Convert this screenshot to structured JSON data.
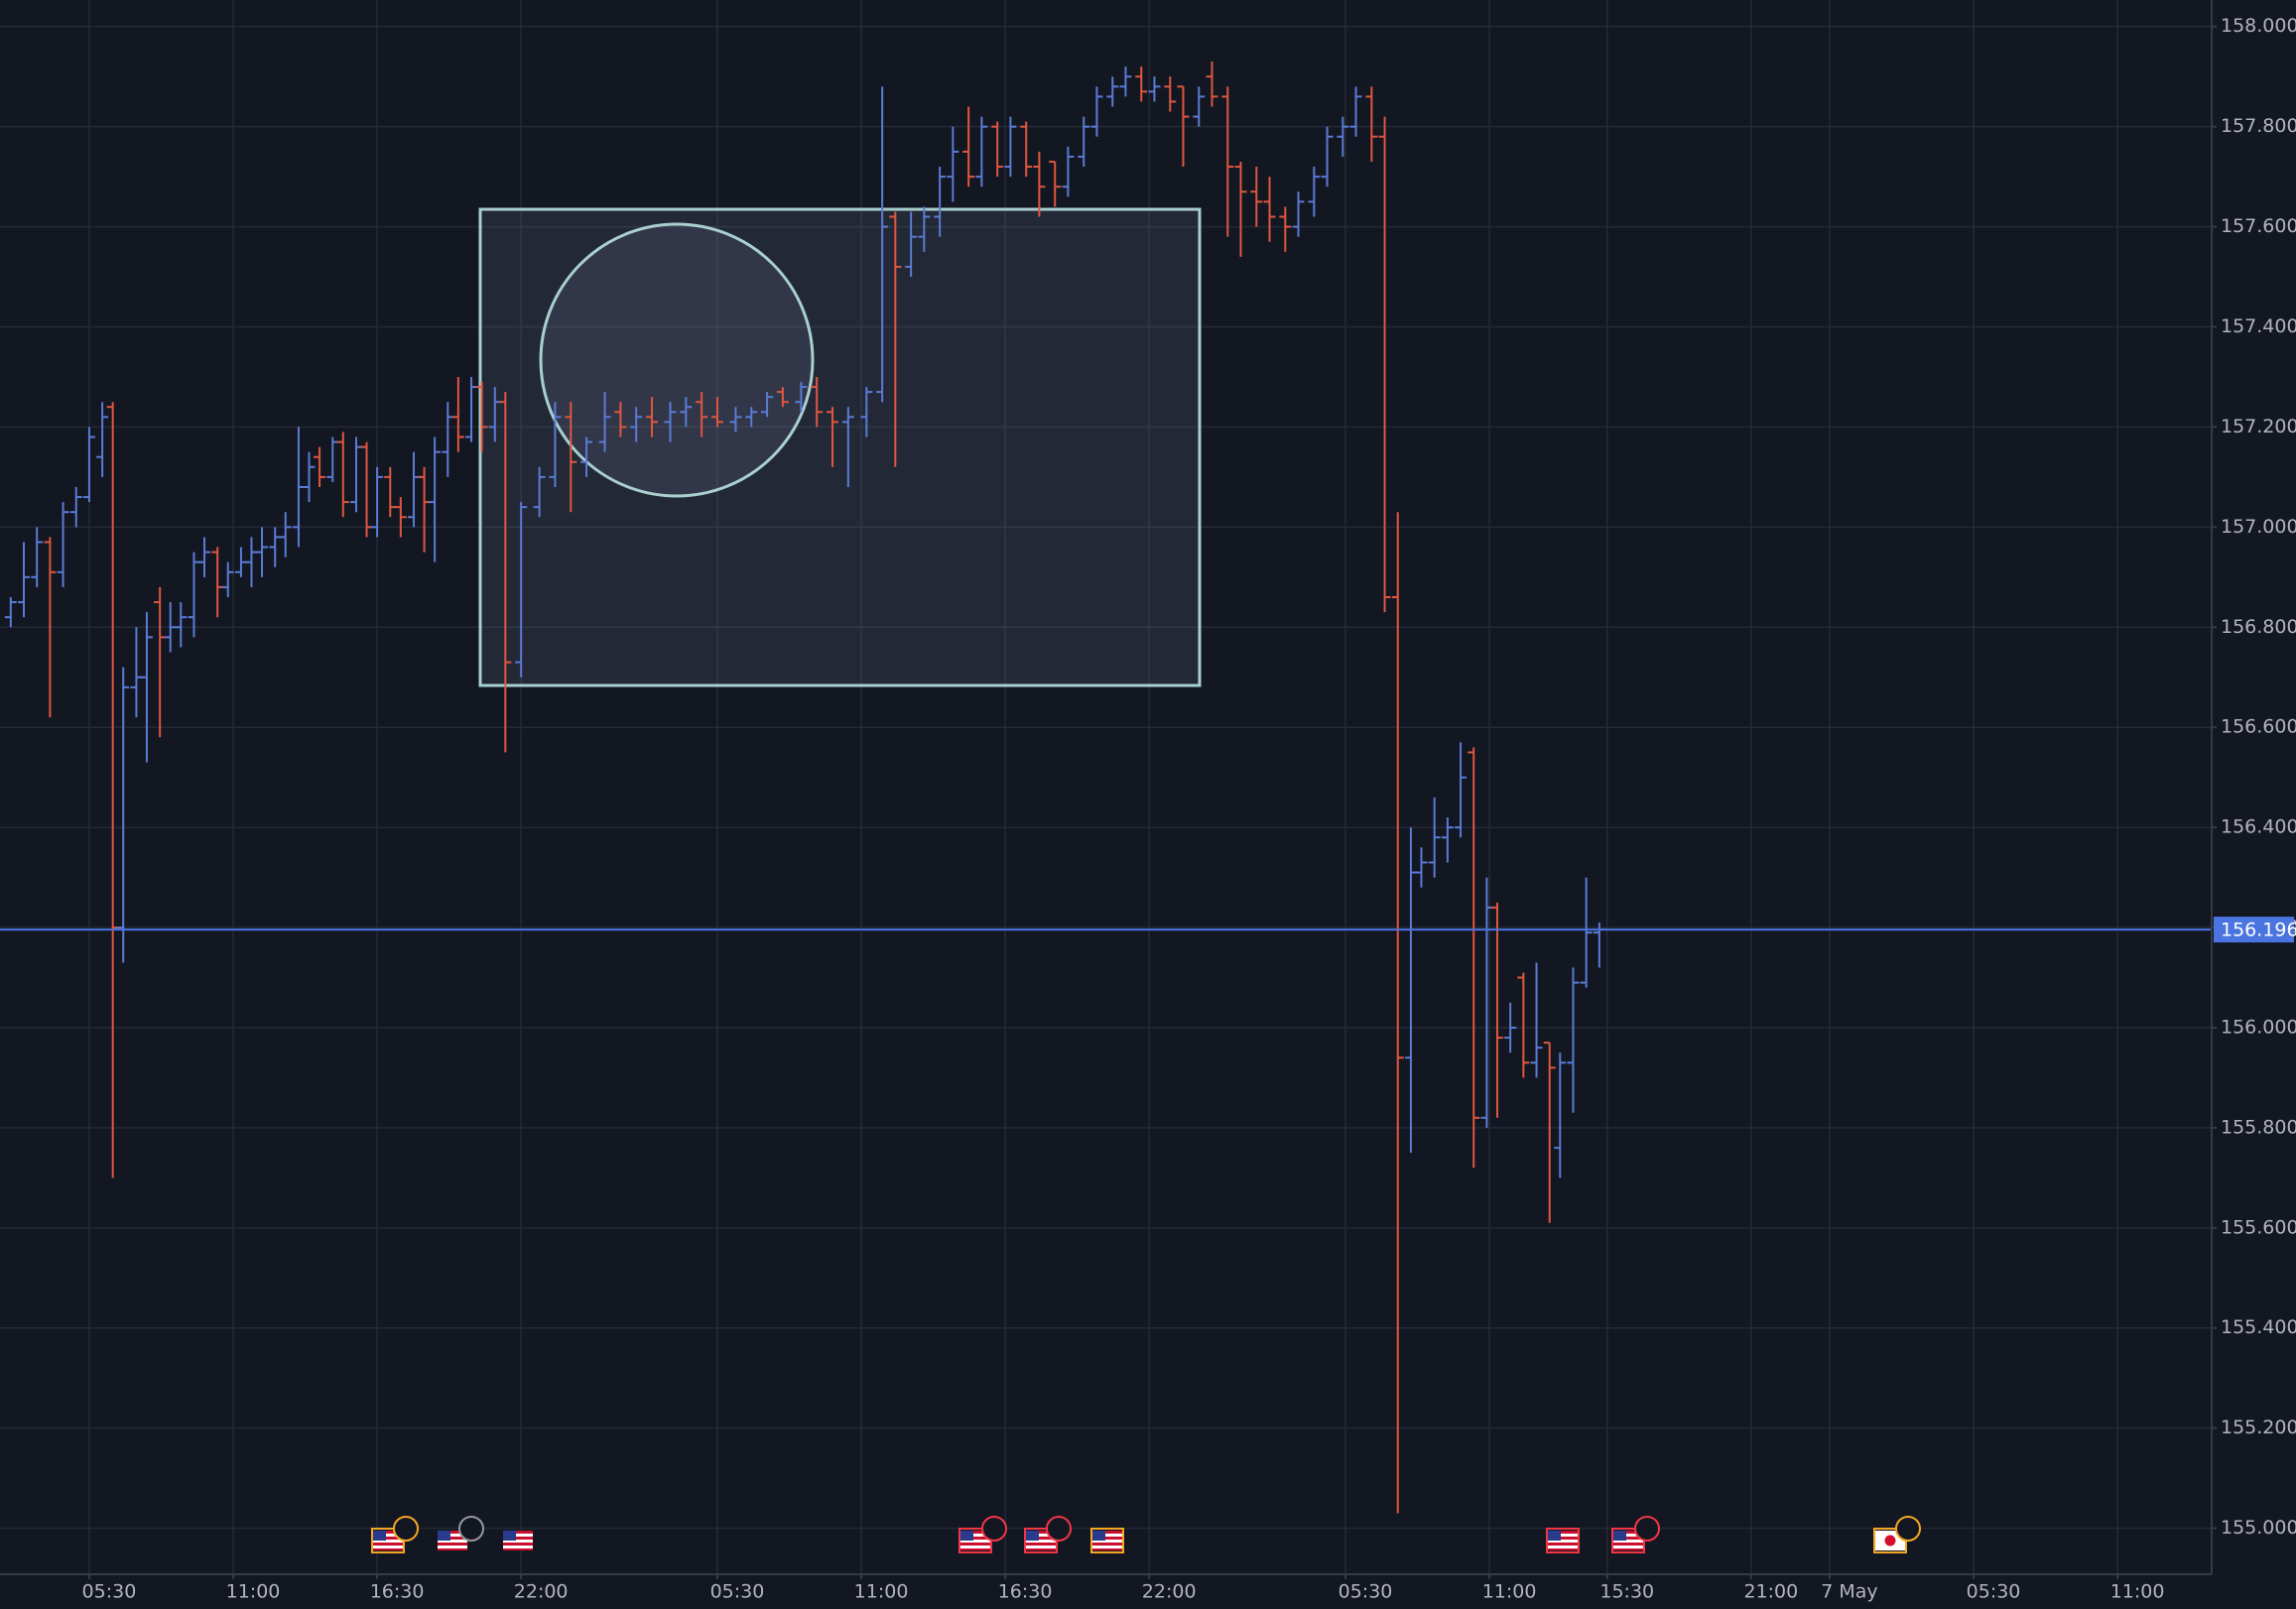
{
  "chart_data": {
    "type": "ohlc",
    "up_color": "#5b7bd6",
    "down_color": "#e0573f",
    "last_price_color": "#4a74e0",
    "xlim": [
      -3.41,
      81.06
    ],
    "ylim": [
      154.91,
      158.053
    ],
    "xticks": [
      {
        "value": 0,
        "label": "05:30"
      },
      {
        "value": 5.5,
        "label": "11:00"
      },
      {
        "value": 11,
        "label": "16:30"
      },
      {
        "value": 16.5,
        "label": "22:00"
      },
      {
        "value": 24,
        "label": "05:30"
      },
      {
        "value": 29.5,
        "label": "11:00"
      },
      {
        "value": 35,
        "label": "16:30"
      },
      {
        "value": 40.5,
        "label": "22:00"
      },
      {
        "value": 48,
        "label": "05:30"
      },
      {
        "value": 53.5,
        "label": "11:00"
      },
      {
        "value": 58,
        "label": "15:30"
      },
      {
        "value": 63.5,
        "label": "21:00"
      },
      {
        "value": 66.5,
        "label": "7 May"
      },
      {
        "value": 72,
        "label": "05:30"
      },
      {
        "value": 77.5,
        "label": "11:00"
      }
    ],
    "yticks": [
      {
        "value": 155,
        "label": "155.000"
      },
      {
        "value": 155.2,
        "label": "155.200"
      },
      {
        "value": 155.4,
        "label": "155.400"
      },
      {
        "value": 155.6,
        "label": "155.600"
      },
      {
        "value": 155.8,
        "label": "155.800"
      },
      {
        "value": 156,
        "label": "156.000"
      },
      {
        "value": 156.2,
        "label": "156.200"
      },
      {
        "value": 156.4,
        "label": "156.400"
      },
      {
        "value": 156.6,
        "label": "156.600"
      },
      {
        "value": 156.8,
        "label": "156.800"
      },
      {
        "value": 157,
        "label": "157.000"
      },
      {
        "value": 157.2,
        "label": "157.200"
      },
      {
        "value": 157.4,
        "label": "157.400"
      },
      {
        "value": 157.6,
        "label": "157.600"
      },
      {
        "value": 157.8,
        "label": "157.800"
      },
      {
        "value": 158,
        "label": "158.000"
      }
    ],
    "grid": true,
    "x": [
      -3,
      -2.5,
      -2,
      -1.5,
      -1,
      -0.5,
      0,
      0.5,
      0.9,
      1.3,
      1.8,
      2.2,
      2.7,
      3.1,
      3.5,
      4.0,
      4.4,
      4.9,
      5.3,
      5.8,
      6.2,
      6.6,
      7.1,
      7.5,
      8.0,
      8.4,
      8.8,
      9.3,
      9.7,
      10.2,
      10.6,
      11.0,
      11.5,
      11.9,
      12.4,
      12.8,
      13.2,
      13.7,
      14.1,
      14.6,
      15.0,
      15.5,
      15.9,
      16.5,
      17.2,
      17.8,
      18.4,
      19.0,
      19.7,
      20.3,
      20.9,
      21.5,
      22.2,
      22.8,
      23.4,
      24.0,
      24.7,
      25.3,
      25.9,
      26.5,
      27.2,
      27.8,
      28.4,
      29.0,
      29.7,
      30.3,
      30.8,
      31.4,
      31.9,
      32.5,
      33.0,
      33.6,
      34.1,
      34.7,
      35.2,
      35.8,
      36.3,
      36.9,
      37.4,
      38.0,
      38.5,
      39.1,
      39.6,
      40.2,
      40.7,
      41.3,
      41.8,
      42.4,
      42.9,
      43.5,
      44.0,
      44.6,
      45.1,
      45.7,
      46.2,
      46.8,
      47.3,
      47.9,
      48.4,
      49.0,
      49.5,
      50.0,
      50.5,
      50.9,
      51.4,
      51.9,
      52.4,
      52.9,
      53.4,
      53.8,
      54.3,
      54.8,
      55.3,
      55.8,
      56.2,
      56.7,
      57.2,
      57.7
    ],
    "open": [
      156.82,
      156.85,
      156.9,
      156.97,
      156.91,
      157.03,
      157.06,
      157.14,
      157.24,
      156.2,
      156.68,
      156.7,
      156.85,
      156.78,
      156.8,
      156.82,
      156.93,
      156.95,
      156.88,
      156.91,
      156.93,
      156.95,
      156.96,
      156.98,
      157.0,
      157.08,
      157.14,
      157.1,
      157.17,
      157.05,
      157.16,
      157.0,
      157.1,
      157.04,
      157.02,
      157.1,
      157.05,
      157.15,
      157.22,
      157.18,
      157.28,
      157.2,
      157.25,
      156.73,
      157.04,
      157.1,
      157.22,
      157.13,
      157.17,
      157.23,
      157.2,
      157.22,
      157.21,
      157.23,
      157.25,
      157.22,
      157.21,
      157.22,
      157.23,
      157.27,
      157.25,
      157.28,
      157.23,
      157.21,
      157.22,
      157.27,
      157.62,
      157.52,
      157.58,
      157.62,
      157.7,
      157.75,
      157.7,
      157.8,
      157.72,
      157.8,
      157.72,
      157.73,
      157.68,
      157.74,
      157.8,
      157.86,
      157.88,
      157.9,
      157.87,
      157.88,
      157.88,
      157.82,
      157.9,
      157.86,
      157.72,
      157.67,
      157.65,
      157.62,
      157.6,
      157.65,
      157.7,
      157.78,
      157.8,
      157.86,
      157.78,
      156.86,
      155.94,
      156.31,
      156.33,
      156.38,
      156.4,
      156.55,
      155.82,
      156.24,
      155.98,
      156.1,
      155.93,
      155.97,
      155.76,
      155.93,
      156.09,
      156.19
    ],
    "high": [
      156.86,
      156.97,
      157.0,
      156.98,
      157.05,
      157.08,
      157.2,
      157.25,
      157.25,
      156.72,
      156.8,
      156.83,
      156.88,
      156.85,
      156.85,
      156.95,
      156.98,
      156.96,
      156.93,
      156.96,
      156.98,
      157.0,
      157.0,
      157.03,
      157.2,
      157.15,
      157.16,
      157.18,
      157.19,
      157.18,
      157.17,
      157.12,
      157.12,
      157.06,
      157.15,
      157.12,
      157.18,
      157.25,
      157.3,
      157.3,
      157.29,
      157.28,
      157.27,
      157.05,
      157.12,
      157.25,
      157.25,
      157.18,
      157.27,
      157.25,
      157.24,
      157.26,
      157.25,
      157.26,
      157.27,
      157.26,
      157.24,
      157.24,
      157.27,
      157.28,
      157.29,
      157.3,
      157.24,
      157.24,
      157.28,
      157.88,
      157.63,
      157.63,
      157.64,
      157.72,
      157.8,
      157.84,
      157.82,
      157.81,
      157.82,
      157.81,
      157.75,
      157.73,
      157.76,
      157.82,
      157.88,
      157.9,
      157.92,
      157.92,
      157.9,
      157.9,
      157.88,
      157.88,
      157.93,
      157.88,
      157.73,
      157.72,
      157.7,
      157.64,
      157.67,
      157.72,
      157.8,
      157.82,
      157.88,
      157.88,
      157.82,
      157.03,
      156.4,
      156.36,
      156.46,
      156.42,
      156.57,
      156.56,
      156.3,
      156.25,
      156.05,
      156.11,
      156.13,
      155.97,
      155.95,
      156.12,
      156.3,
      156.21
    ],
    "low": [
      156.8,
      156.82,
      156.88,
      156.62,
      156.88,
      157.0,
      157.05,
      157.1,
      155.7,
      156.13,
      156.62,
      156.53,
      156.58,
      156.75,
      156.76,
      156.78,
      156.9,
      156.82,
      156.86,
      156.9,
      156.88,
      156.9,
      156.92,
      156.94,
      156.96,
      157.05,
      157.08,
      157.09,
      157.02,
      157.03,
      156.98,
      156.98,
      157.02,
      156.98,
      157.0,
      156.95,
      156.93,
      157.1,
      157.15,
      157.17,
      157.15,
      157.17,
      156.55,
      156.7,
      157.02,
      157.08,
      157.03,
      157.1,
      157.15,
      157.18,
      157.17,
      157.18,
      157.17,
      157.2,
      157.18,
      157.2,
      157.19,
      157.2,
      157.22,
      157.24,
      157.23,
      157.2,
      157.12,
      157.08,
      157.18,
      157.25,
      157.12,
      157.5,
      157.55,
      157.58,
      157.65,
      157.68,
      157.68,
      157.7,
      157.7,
      157.7,
      157.62,
      157.64,
      157.66,
      157.72,
      157.78,
      157.84,
      157.86,
      157.85,
      157.85,
      157.83,
      157.72,
      157.8,
      157.84,
      157.58,
      157.54,
      157.6,
      157.57,
      157.55,
      157.58,
      157.62,
      157.68,
      157.74,
      157.78,
      157.73,
      156.83,
      155.03,
      155.75,
      156.28,
      156.3,
      156.33,
      156.38,
      155.72,
      155.8,
      155.82,
      155.95,
      155.9,
      155.9,
      155.61,
      155.7,
      155.83,
      156.08,
      156.12
    ],
    "close": [
      156.85,
      156.9,
      156.97,
      156.91,
      157.03,
      157.06,
      157.18,
      157.22,
      156.2,
      156.68,
      156.7,
      156.78,
      156.78,
      156.8,
      156.82,
      156.93,
      156.95,
      156.88,
      156.91,
      156.93,
      156.95,
      156.96,
      156.98,
      157.0,
      157.08,
      157.12,
      157.1,
      157.17,
      157.05,
      157.16,
      157.0,
      157.1,
      157.04,
      157.02,
      157.1,
      157.05,
      157.15,
      157.22,
      157.18,
      157.28,
      157.2,
      157.25,
      156.73,
      157.04,
      157.1,
      157.22,
      157.13,
      157.17,
      157.22,
      157.2,
      157.22,
      157.21,
      157.23,
      157.24,
      157.22,
      157.21,
      157.22,
      157.23,
      157.26,
      157.25,
      157.28,
      157.23,
      157.21,
      157.22,
      157.27,
      157.6,
      157.52,
      157.58,
      157.62,
      157.7,
      157.75,
      157.7,
      157.8,
      157.72,
      157.8,
      157.72,
      157.68,
      157.68,
      157.74,
      157.8,
      157.86,
      157.88,
      157.9,
      157.87,
      157.88,
      157.85,
      157.82,
      157.86,
      157.86,
      157.72,
      157.67,
      157.65,
      157.62,
      157.6,
      157.65,
      157.7,
      157.78,
      157.8,
      157.86,
      157.78,
      156.86,
      155.94,
      156.31,
      156.33,
      156.38,
      156.4,
      156.5,
      155.82,
      156.24,
      155.98,
      156.0,
      155.93,
      155.96,
      155.92,
      155.93,
      156.09,
      156.19,
      156.196
    ]
  }
}
